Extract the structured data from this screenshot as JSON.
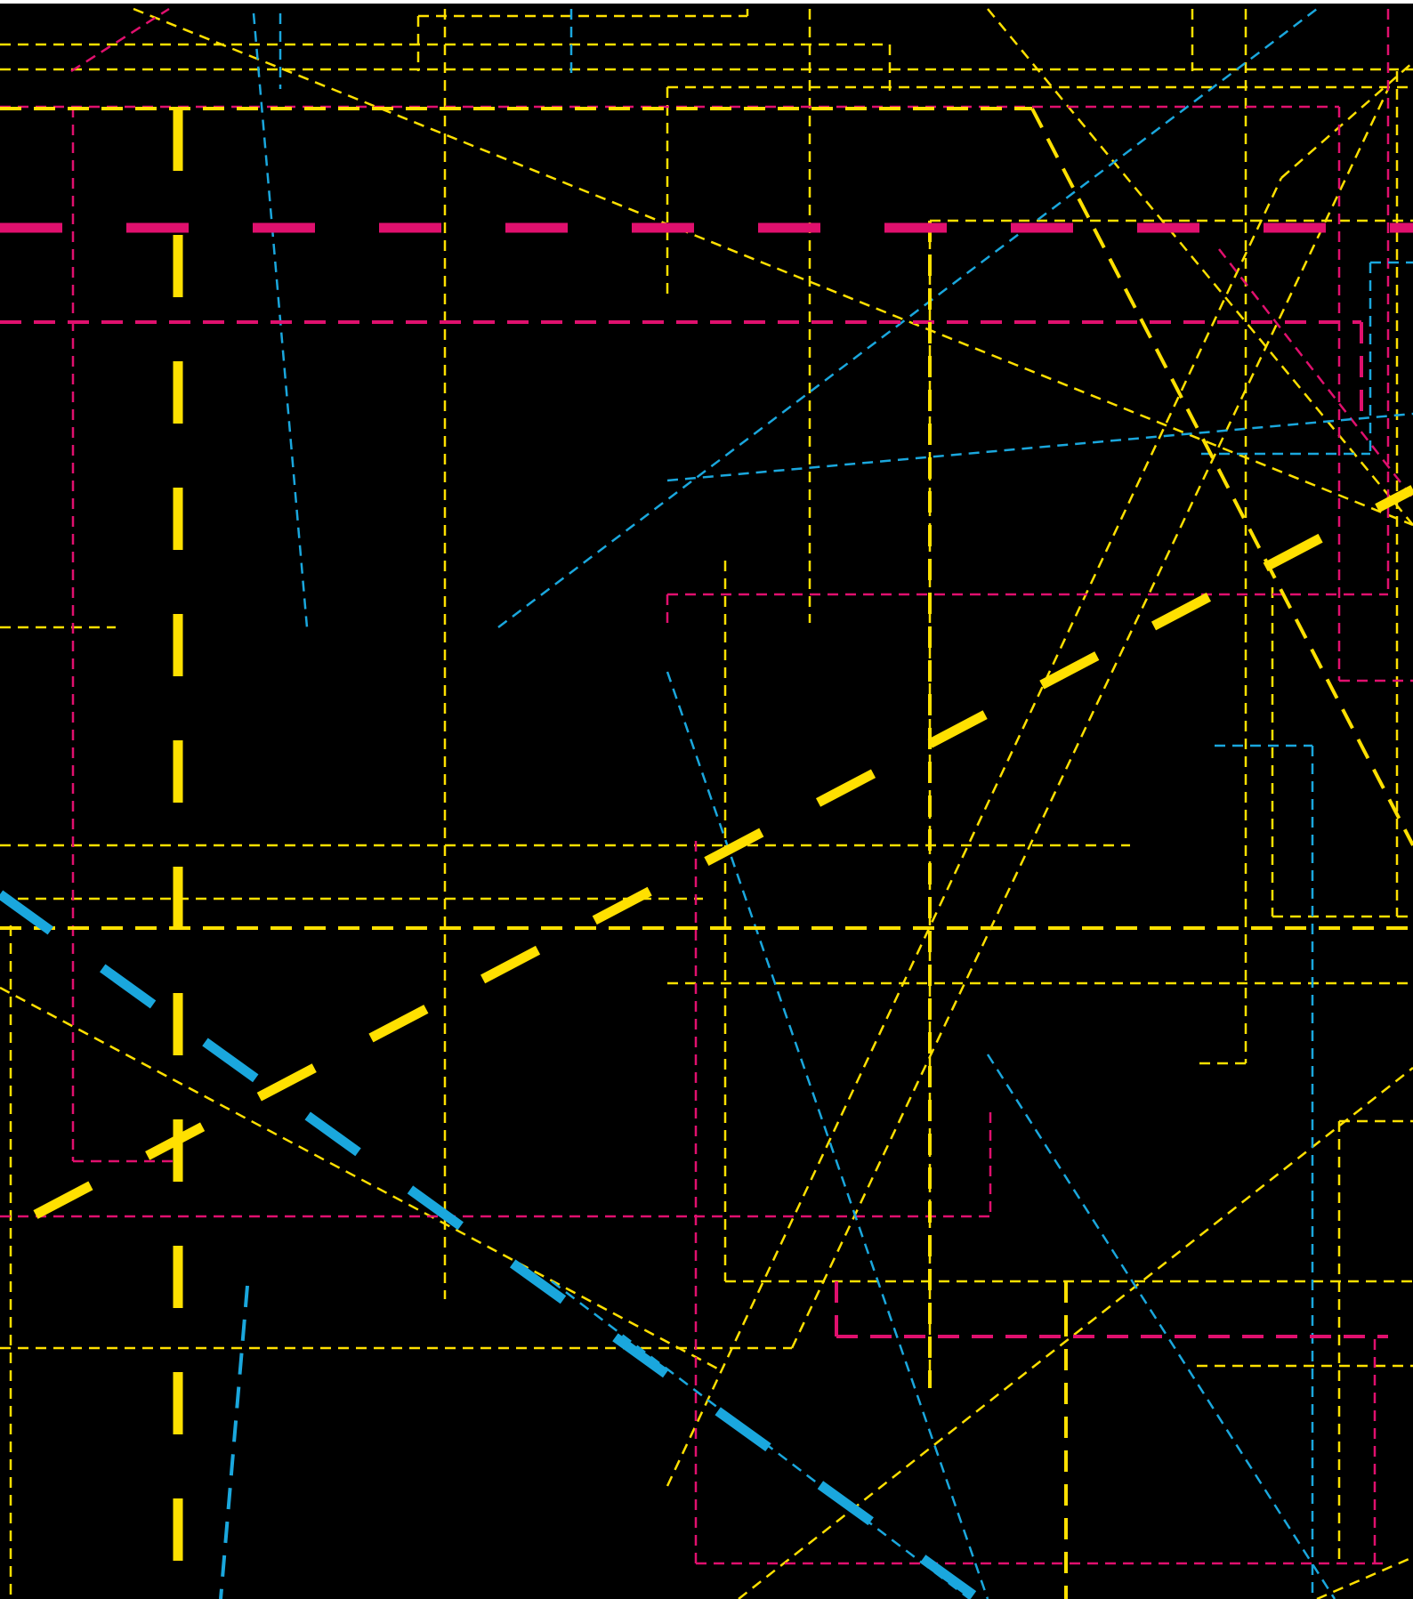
{
  "artwork": {
    "description_colors": {
      "background": "#000000",
      "page_margin": "#ffffff",
      "yellow": "#ffe000",
      "magenta": "#e0106e",
      "cyan": "#1aa7dd"
    },
    "style": "overlapping dashed lines (abstract pattern)"
  }
}
